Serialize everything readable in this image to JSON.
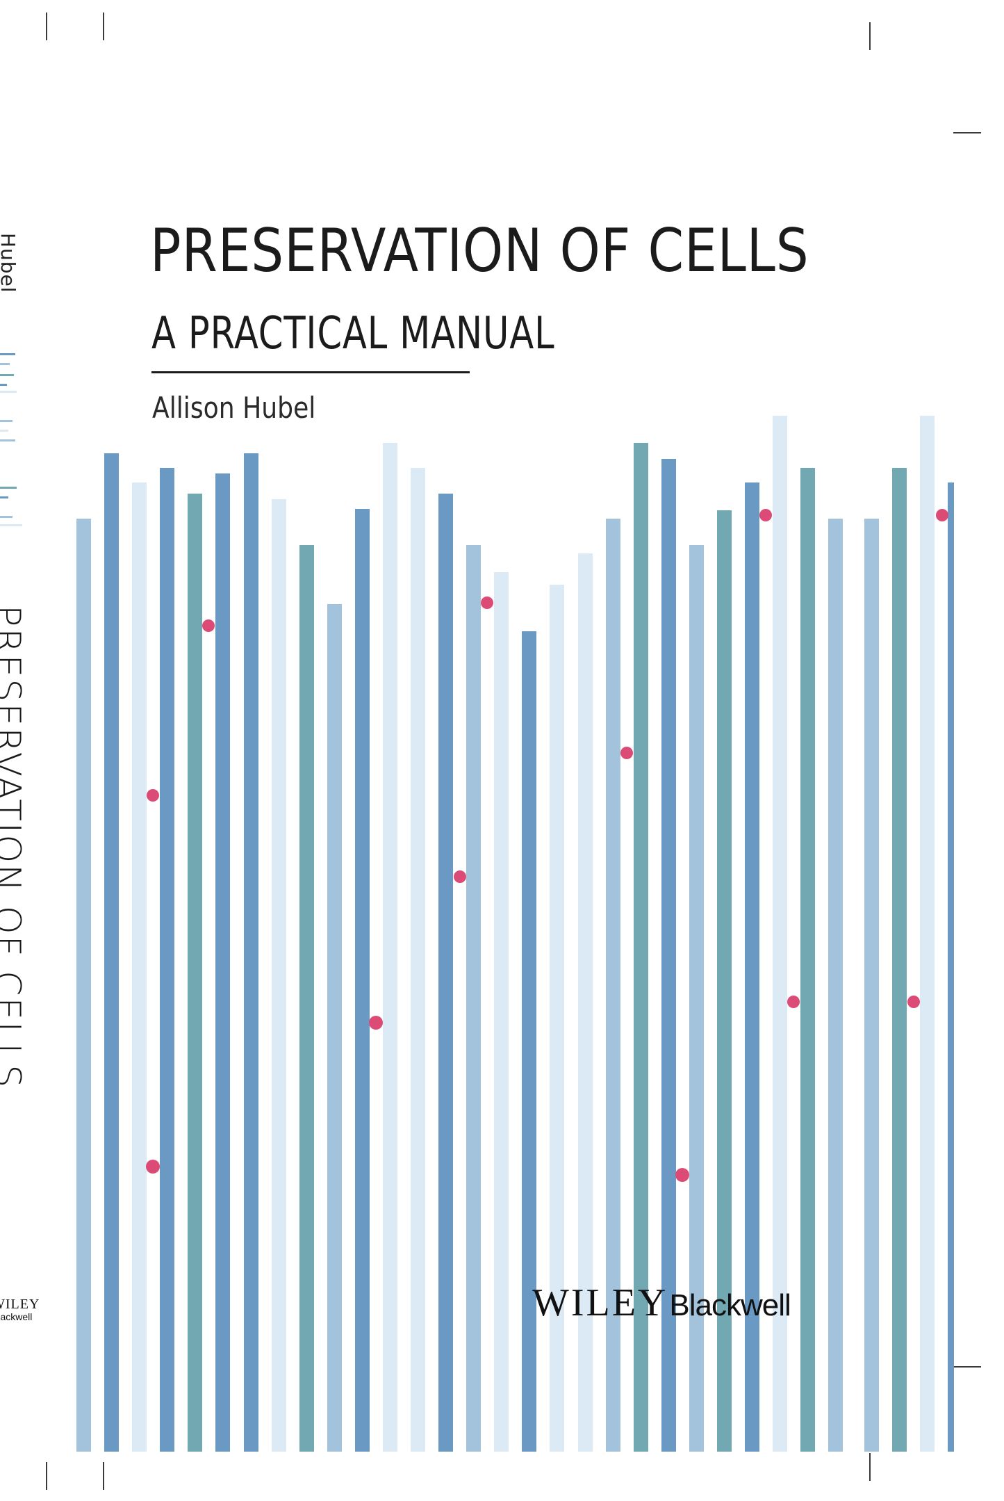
{
  "cover": {
    "title": "PRESERVATION OF CELLS",
    "subtitle": "A PRACTICAL MANUAL",
    "author": "Allison Hubel"
  },
  "spine": {
    "author": "Hubel",
    "title": "PRESERVATION OF CELLS",
    "logo_wiley": "WILEY",
    "logo_blackwell": "Blackwell"
  },
  "publisher": {
    "wiley": "WILEY",
    "blackwell": "Blackwell"
  },
  "colors": {
    "steel_blue": "#6a9ac4",
    "teal": "#72a8b2",
    "light_blue": "#a3c2dc",
    "pale_blue": "#dbeaf5",
    "dot_pink": "#dc4b76"
  }
}
